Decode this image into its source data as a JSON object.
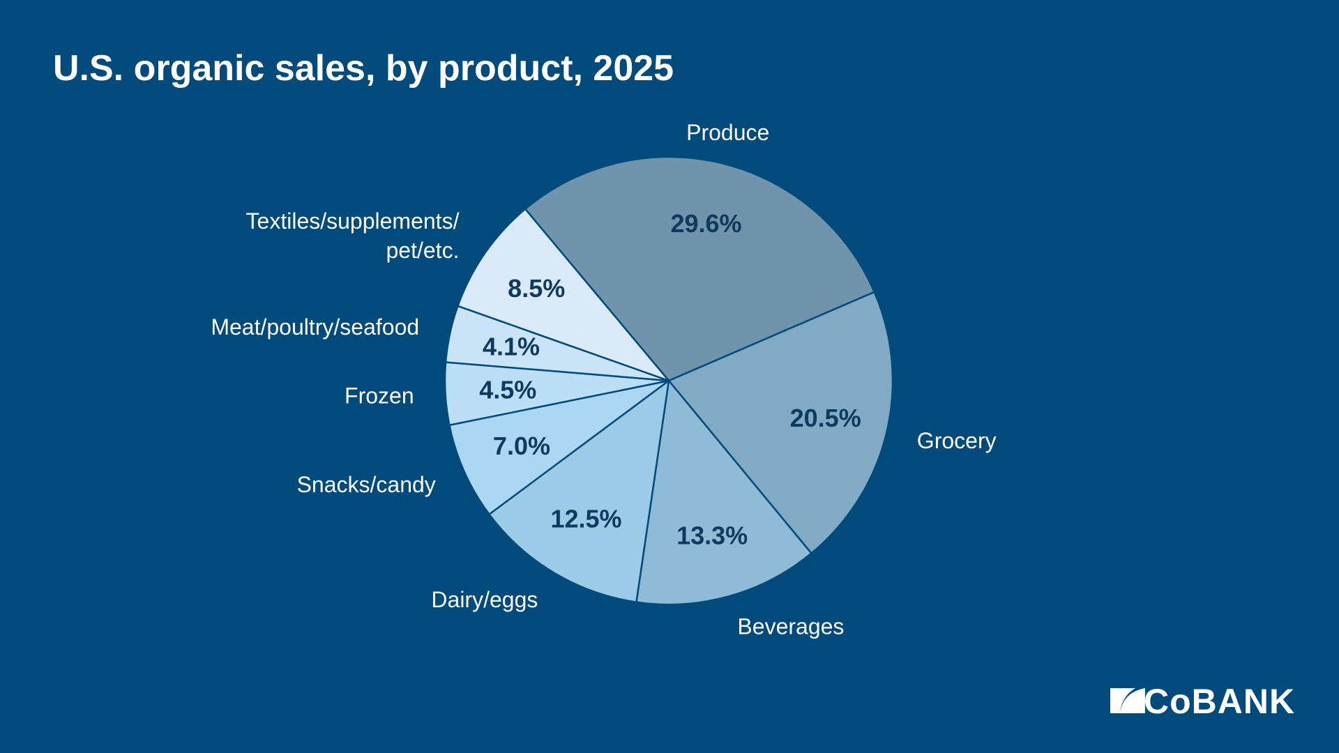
{
  "chart_data": {
    "type": "pie",
    "title": "U.S. organic sales, by product, 2025",
    "categories": [
      "Produce",
      "Grocery",
      "Beverages",
      "Dairy/eggs",
      "Snacks/candy",
      "Frozen",
      "Meat/poultry/seafood",
      "Textiles/supplements/ pet/etc."
    ],
    "values": [
      29.6,
      20.5,
      13.3,
      12.5,
      7.0,
      4.5,
      4.1,
      8.5
    ],
    "value_labels": [
      "29.6%",
      "20.5%",
      "13.3%",
      "12.5%",
      "7.0%",
      "4.5%",
      "4.1%",
      "8.5%"
    ],
    "colors": [
      "#7094ab",
      "#81abc4",
      "#8fbbd6",
      "#9ccbe8",
      "#acd7f3",
      "#bcdff5",
      "#c9e4f6",
      "#daeaf8"
    ]
  },
  "logo": "CoBANK"
}
